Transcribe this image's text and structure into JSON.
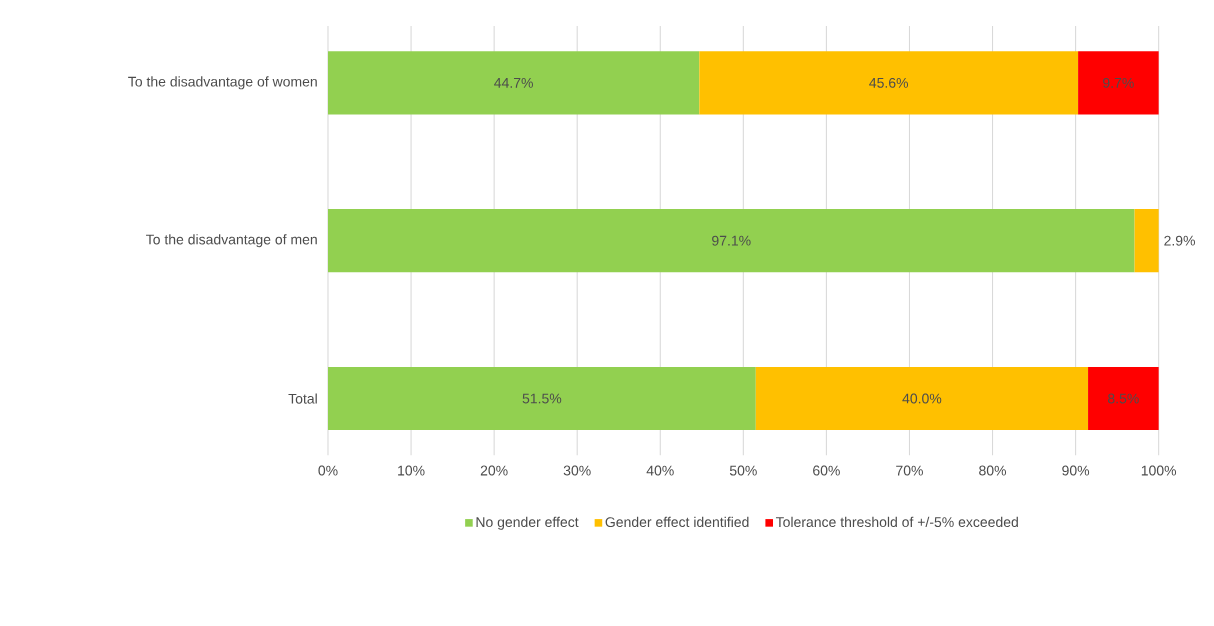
{
  "chart_data": {
    "type": "bar",
    "orientation": "horizontal",
    "stacked": true,
    "categories": [
      "To the disadvantage of women",
      "To the disadvantage of men",
      "Total"
    ],
    "series": [
      {
        "name": "No gender effect",
        "color": "#92d050",
        "values": [
          44.7,
          97.1,
          51.5
        ],
        "value_labels": [
          "44.7%",
          "97.1%",
          "51.5%"
        ]
      },
      {
        "name": "Gender effect identified",
        "color": "#ffc000",
        "values": [
          45.6,
          2.9,
          40.0
        ],
        "value_labels": [
          "45.6%",
          "2.9%",
          "40.0%"
        ]
      },
      {
        "name": "Tolerance threshold of +/-5% exceeded",
        "color": "#ff0000",
        "values": [
          9.7,
          null,
          8.5
        ],
        "value_labels": [
          "9.7%",
          null,
          "8.5%"
        ]
      }
    ],
    "xlim": [
      0,
      100
    ],
    "xticks": [
      {
        "value": 0,
        "label": "0%"
      },
      {
        "value": 10,
        "label": "10%"
      },
      {
        "value": 20,
        "label": "20%"
      },
      {
        "value": 30,
        "label": "30%"
      },
      {
        "value": 40,
        "label": "40%"
      },
      {
        "value": 50,
        "label": "50%"
      },
      {
        "value": 60,
        "label": "60%"
      },
      {
        "value": 70,
        "label": "70%"
      },
      {
        "value": 80,
        "label": "80%"
      },
      {
        "value": 90,
        "label": "90%"
      },
      {
        "value": 100,
        "label": "100%"
      }
    ],
    "grid": "x",
    "legend": "bottom"
  }
}
